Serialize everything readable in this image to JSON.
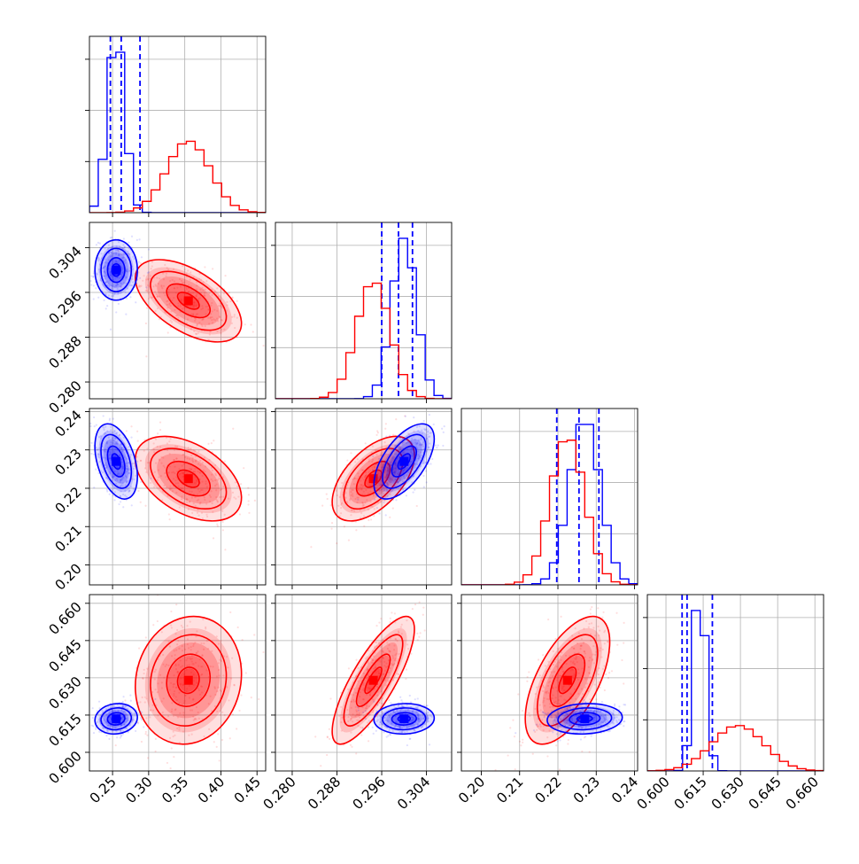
{
  "colors": {
    "blue": "#0000ff",
    "red": "#ff0000",
    "grid": "#b0b0b0"
  },
  "chart_data": {
    "type": "corner",
    "grid": true,
    "parameters": [
      {
        "ticks": [
          "0.25",
          "0.30",
          "0.35",
          "0.40",
          "0.45"
        ],
        "tick_values": [
          0.25,
          0.3,
          0.35,
          0.4,
          0.45
        ],
        "lim": [
          0.218,
          0.462
        ]
      },
      {
        "ticks": [
          "0.280",
          "0.288",
          "0.296",
          "0.304"
        ],
        "tick_values": [
          0.28,
          0.288,
          0.296,
          0.304
        ],
        "lim": [
          0.277,
          0.3085
        ]
      },
      {
        "ticks": [
          "0.20",
          "0.21",
          "0.22",
          "0.23",
          "0.24"
        ],
        "tick_values": [
          0.2,
          0.21,
          0.22,
          0.23,
          0.24
        ],
        "lim": [
          0.1948,
          0.2408
        ]
      },
      {
        "ticks": [
          "0.600",
          "0.615",
          "0.630",
          "0.645",
          "0.660"
        ],
        "tick_values": [
          0.6,
          0.615,
          0.63,
          0.645,
          0.66
        ],
        "lim": [
          0.5925,
          0.6635
        ]
      }
    ],
    "series": [
      {
        "color": "blue",
        "mean": [
          0.255,
          0.3,
          0.227,
          0.6135
        ],
        "sd": [
          0.012,
          0.0022,
          0.004,
          0.0025
        ],
        "corr": [
          [
            1,
            0,
            -0.4,
            0.1
          ],
          [
            0,
            1,
            0.6,
            0.05
          ],
          [
            -0.4,
            0.6,
            1,
            0.1
          ],
          [
            0.1,
            0.05,
            0.1,
            1
          ]
        ],
        "quantiles": [
          [
            0.247,
            0.262,
            0.288
          ],
          [
            0.296,
            0.299,
            0.3015
          ],
          [
            0.2197,
            0.2255,
            0.2307
          ],
          [
            0.6065,
            0.6085,
            0.6187
          ]
        ]
      },
      {
        "color": "red",
        "mean": [
          0.355,
          0.2945,
          0.2225,
          0.629
        ],
        "sd": [
          0.03,
          0.003,
          0.0045,
          0.0105
        ],
        "corr": [
          [
            1,
            -0.55,
            -0.45,
            0.1
          ],
          [
            -0.55,
            1,
            0.55,
            0.8
          ],
          [
            -0.45,
            0.55,
            1,
            0.6
          ],
          [
            0.1,
            0.8,
            0.6,
            1
          ]
        ],
        "quantiles": []
      }
    ]
  }
}
